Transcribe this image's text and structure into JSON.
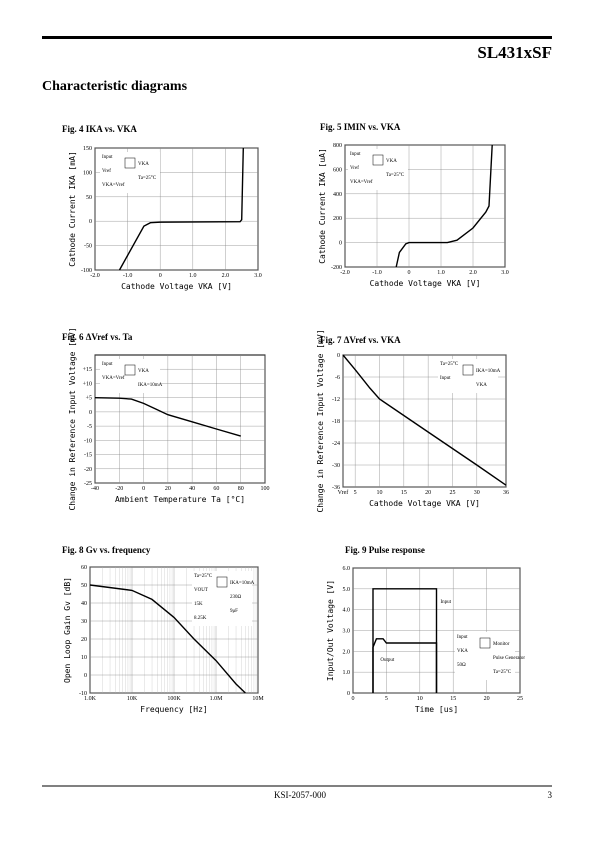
{
  "header": {
    "part": "SL431xSF",
    "section": "Characteristic diagrams"
  },
  "footer": {
    "doc": "KSI-2057-000",
    "page": "3"
  },
  "chart_data": [
    {
      "type": "line",
      "title": "Fig. 4 IKA vs. VKA",
      "xlabel": "Cathode Voltage VKA [V]",
      "ylabel": "Cathode Current IKA [mA]",
      "xlim": [
        -2,
        3
      ],
      "xticks": [
        {
          "value": -2,
          "label": "-2.0"
        },
        {
          "value": -1,
          "label": "-1.0"
        },
        0,
        {
          "value": 1,
          "label": "1.0"
        },
        {
          "value": 2,
          "label": "2.0"
        },
        {
          "value": 3,
          "label": "3.0"
        }
      ],
      "ylim": [
        -100,
        150
      ],
      "yticks": [
        -100,
        -50,
        0,
        50,
        100,
        150
      ],
      "grid": true,
      "series": [
        {
          "color": "#000000",
          "x": [
            -1.25,
            -0.5,
            -0.3,
            0,
            2.45,
            2.5,
            2.55
          ],
          "values": [
            -100,
            -10,
            -3,
            -2,
            -1,
            3,
            150
          ]
        }
      ],
      "annotations": [
        "Input",
        "VKA",
        "Vref",
        "Ta=25°C",
        "VKA=Vref"
      ]
    },
    {
      "type": "line",
      "title": "Fig. 5 IMIN vs. VKA",
      "xlabel": "Cathode Voltage VKA [V]",
      "ylabel": "Cathode Current IKA [uA]",
      "xlim": [
        -2,
        3
      ],
      "xticks": [
        {
          "value": -2,
          "label": "-2.0"
        },
        {
          "value": -1,
          "label": "-1.0"
        },
        0,
        {
          "value": 1,
          "label": "1.0"
        },
        {
          "value": 2,
          "label": "2.0"
        },
        {
          "value": 3,
          "label": "3.0"
        }
      ],
      "ylim": [
        -200,
        800
      ],
      "yticks": [
        -200,
        0,
        200,
        400,
        600,
        800
      ],
      "grid": true,
      "series": [
        {
          "color": "#000000",
          "x": [
            -0.4,
            -0.3,
            -0.1,
            0,
            1.2,
            1.5,
            2,
            2.4,
            2.5,
            2.6
          ],
          "values": [
            -200,
            -80,
            -10,
            0,
            0,
            20,
            120,
            250,
            300,
            800
          ]
        }
      ],
      "annotations": [
        "Input",
        "VKA",
        "Vref",
        "Ta=25°C",
        "VKA=Vref"
      ]
    },
    {
      "type": "line",
      "title": "Fig. 6 ΔVref vs. Ta",
      "xlabel": "Ambient Temperature Ta [°C]",
      "ylabel": "Change in Reference Input Voltage [mV]",
      "xlim": [
        -40,
        100
      ],
      "xticks": [
        -40,
        -20,
        0,
        20,
        40,
        60,
        80,
        100
      ],
      "ylim": [
        -25,
        20
      ],
      "yticks": [
        {
          "value": 15,
          "label": "+15"
        },
        {
          "value": 10,
          "label": "+10"
        },
        {
          "value": 5,
          "label": "+5"
        },
        0,
        -5,
        -10,
        -15,
        -20,
        -25
      ],
      "grid": true,
      "series": [
        {
          "color": "#000000",
          "x": [
            -40,
            -20,
            -10,
            0,
            10,
            20,
            40,
            60,
            80
          ],
          "values": [
            5,
            4.8,
            4.5,
            3,
            1,
            -1,
            -3.5,
            -6,
            -8.5
          ]
        }
      ],
      "annotations": [
        "Input",
        "VKA",
        "VKA=Vref",
        "IKA=10mA"
      ]
    },
    {
      "type": "line",
      "title": "Fig. 7 ΔVref vs. VKA",
      "xlabel": "Cathode Voltage VKA [V]",
      "ylabel": "Change in Reference Input Voltage [mV]",
      "xlim": [
        2.5,
        36
      ],
      "xticks": [
        {
          "value": 2.5,
          "label": "Vref"
        },
        5,
        10,
        15,
        20,
        25,
        30,
        36
      ],
      "ylim": [
        -36,
        0
      ],
      "yticks": [
        0,
        -6,
        -12,
        -18,
        -24,
        -30,
        -36
      ],
      "grid": true,
      "series": [
        {
          "color": "#000000",
          "x": [
            2.5,
            5,
            8,
            10,
            20,
            30,
            36
          ],
          "values": [
            0,
            -4,
            -9,
            -12,
            -21,
            -30,
            -35.5
          ]
        }
      ],
      "annotations": [
        "Ta=25°C",
        "IKA=10mA",
        "Input",
        "VKA"
      ]
    },
    {
      "type": "line",
      "title": "Fig. 8 Gv vs. frequency",
      "xlabel": "Frequency [Hz]",
      "ylabel": "Open Loop Gain Gv [dB]",
      "xlog": true,
      "xlim": [
        1000,
        10000000
      ],
      "xticks": [
        {
          "value": 1000,
          "label": "1.0K"
        },
        {
          "value": 10000,
          "label": "10K"
        },
        {
          "value": 100000,
          "label": "100K"
        },
        {
          "value": 1000000,
          "label": "1.0M"
        },
        {
          "value": 10000000,
          "label": "10M"
        }
      ],
      "ylim": [
        -10,
        60
      ],
      "yticks": [
        -10,
        0,
        10,
        20,
        30,
        40,
        50,
        60
      ],
      "grid": true,
      "series": [
        {
          "color": "#000000",
          "x": [
            1000,
            10000,
            30000,
            100000,
            300000,
            1000000,
            3000000,
            5000000
          ],
          "values": [
            50,
            47,
            42,
            32,
            20,
            8,
            -5,
            -10
          ]
        }
      ],
      "annotations": [
        "Ta=25°C",
        "IKA=10mA",
        "VOUT",
        "230Ω",
        "15K",
        "9μF",
        "8.25K"
      ]
    },
    {
      "type": "line",
      "title": "Fig. 9 Pulse response",
      "xlabel": "Time [us]",
      "ylabel": "Input/Out Voltage [V]",
      "xlim": [
        0,
        25
      ],
      "xticks": [
        0,
        5,
        10,
        15,
        20,
        25
      ],
      "ylim": [
        0,
        6
      ],
      "yticks": [
        0,
        {
          "value": 1,
          "label": "1.0"
        },
        {
          "value": 2,
          "label": "2.0"
        },
        {
          "value": 3,
          "label": "3.0"
        },
        {
          "value": 4,
          "label": "4.0"
        },
        {
          "value": 5,
          "label": "5.0"
        },
        {
          "value": 6,
          "label": "6.0"
        }
      ],
      "grid": true,
      "series": [
        {
          "name": "Input",
          "color": "#000000",
          "x": [
            3,
            3,
            12.5,
            12.5
          ],
          "values": [
            0,
            5,
            5,
            0
          ]
        },
        {
          "name": "Output",
          "color": "#000000",
          "x": [
            3,
            3,
            3.5,
            4.5,
            5,
            12.5,
            12.5
          ],
          "values": [
            0,
            2.2,
            2.6,
            2.6,
            2.4,
            2.4,
            0
          ]
        }
      ],
      "annotations": [
        "Input",
        "Monitor",
        "VKA",
        "Pulse Generator",
        "50Ω",
        "Ta=25°C"
      ]
    }
  ]
}
